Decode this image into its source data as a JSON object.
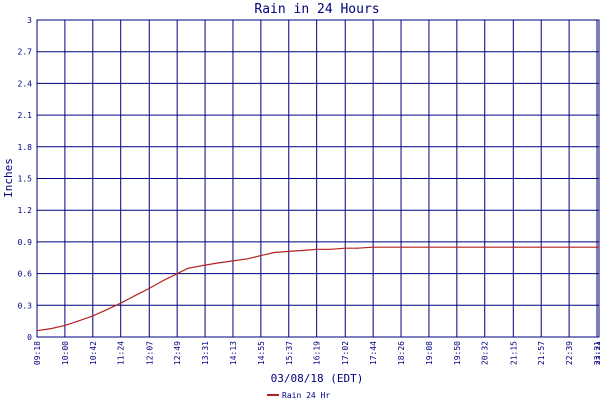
{
  "chart_data": {
    "type": "line",
    "title": "Rain in 24 Hours",
    "ylabel": "Inches",
    "xlabel": "03/08/18 (EDT)",
    "ylim": [
      0,
      3
    ],
    "y_ticks": [
      "0",
      "0.3",
      "0.6",
      "0.9",
      "1.2",
      "1.5",
      "1.8",
      "2.1",
      "2.4",
      "2.7",
      "3"
    ],
    "x_ticks": [
      "09:18",
      "10:00",
      "10:42",
      "11:24",
      "12:07",
      "12:49",
      "13:31",
      "14:13",
      "14:55",
      "15:37",
      "16:19",
      "17:02",
      "17:44",
      "18:26",
      "19:08",
      "19:50",
      "20:32",
      "21:15",
      "21:57",
      "22:39",
      "23:21",
      "23:24"
    ],
    "grid": true,
    "legend_position": "bottom-center",
    "series": [
      {
        "name": "Rain 24 Hr",
        "color": "#b22222",
        "x": [
          "09:18",
          "09:40",
          "10:00",
          "10:20",
          "10:42",
          "11:00",
          "11:24",
          "11:45",
          "12:07",
          "12:30",
          "12:49",
          "13:05",
          "13:31",
          "13:50",
          "14:13",
          "14:35",
          "14:55",
          "15:15",
          "15:37",
          "16:00",
          "16:19",
          "16:40",
          "17:02",
          "17:20",
          "17:44",
          "18:26",
          "19:08",
          "19:50",
          "20:32",
          "21:15",
          "21:57",
          "22:39",
          "23:24"
        ],
        "values": [
          0.06,
          0.08,
          0.11,
          0.15,
          0.2,
          0.25,
          0.32,
          0.39,
          0.46,
          0.54,
          0.6,
          0.65,
          0.68,
          0.7,
          0.72,
          0.74,
          0.77,
          0.8,
          0.81,
          0.82,
          0.83,
          0.83,
          0.84,
          0.84,
          0.85,
          0.85,
          0.85,
          0.85,
          0.85,
          0.85,
          0.85,
          0.85,
          0.85
        ]
      }
    ]
  },
  "colors": {
    "grid": "#000080",
    "axis_text": "#000080",
    "series": "#b22222"
  }
}
